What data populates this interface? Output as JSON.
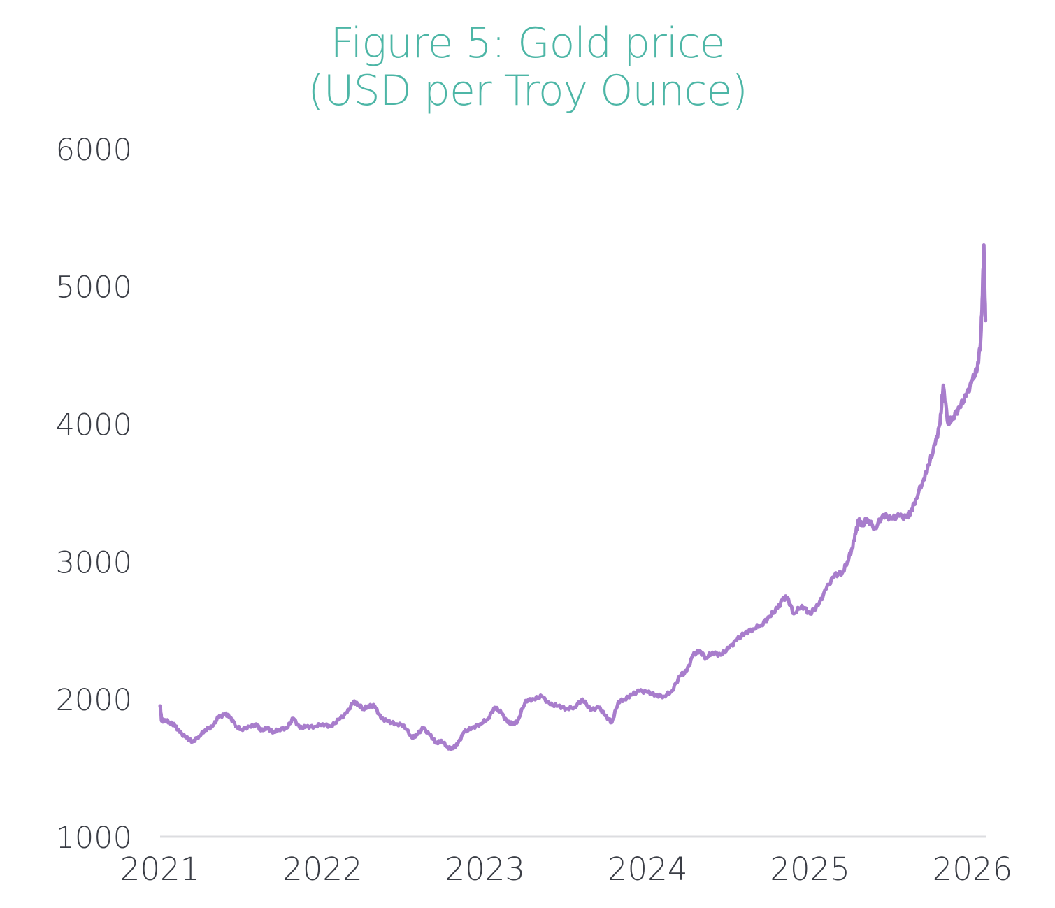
{
  "chart_data": {
    "type": "line",
    "title": "Figure 5: Gold price",
    "subtitle": "(USD per Troy Ounce)",
    "xlabel": "",
    "ylabel": "",
    "ylim": [
      1000,
      6000
    ],
    "xlim": [
      2021,
      2026.08
    ],
    "yticks": [
      "1000",
      "2000",
      "3000",
      "4000",
      "5000",
      "6000"
    ],
    "xticks": [
      "2021",
      "2022",
      "2023",
      "2024",
      "2025",
      "2026"
    ],
    "grid": false,
    "legend": "none",
    "line_color": "#a87dcc",
    "axis_color": "#dcdde0",
    "title_color": "#4db6a6",
    "series": [
      {
        "name": "Gold price",
        "x": [
          2021.0,
          2021.01,
          2021.03,
          2021.06,
          2021.09,
          2021.12,
          2021.16,
          2021.2,
          2021.24,
          2021.28,
          2021.32,
          2021.36,
          2021.4,
          2021.43,
          2021.47,
          2021.5,
          2021.55,
          2021.6,
          2021.62,
          2021.66,
          2021.7,
          2021.73,
          2021.78,
          2021.82,
          2021.86,
          2021.9,
          2021.95,
          2022.0,
          2022.05,
          2022.1,
          2022.15,
          2022.19,
          2022.22,
          2022.25,
          2022.28,
          2022.32,
          2022.36,
          2022.4,
          2022.45,
          2022.5,
          2022.55,
          2022.58,
          2022.62,
          2022.66,
          2022.7,
          2022.73,
          2022.77,
          2022.8,
          2022.83,
          2022.87,
          2022.92,
          2022.97,
          2023.02,
          2023.06,
          2023.1,
          2023.14,
          2023.17,
          2023.2,
          2023.25,
          2023.3,
          2023.35,
          2023.4,
          2023.45,
          2023.5,
          2023.55,
          2023.6,
          2023.65,
          2023.7,
          2023.74,
          2023.78,
          2023.82,
          2023.86,
          2023.9,
          2023.95,
          2024.0,
          2024.05,
          2024.1,
          2024.15,
          2024.2,
          2024.24,
          2024.28,
          2024.32,
          2024.36,
          2024.4,
          2024.45,
          2024.5,
          2024.55,
          2024.6,
          2024.65,
          2024.7,
          2024.75,
          2024.8,
          2024.83,
          2024.86,
          2024.9,
          2024.95,
          2025.0,
          2025.05,
          2025.1,
          2025.15,
          2025.2,
          2025.23,
          2025.26,
          2025.28,
          2025.3,
          2025.32,
          2025.35,
          2025.4,
          2025.45,
          2025.5,
          2025.55,
          2025.6,
          2025.62,
          2025.65,
          2025.7,
          2025.73,
          2025.77,
          2025.8,
          2025.82,
          2025.85,
          2025.88,
          2025.92,
          2025.96,
          2026.0,
          2026.03,
          2026.05,
          2026.06,
          2026.07,
          2026.08
        ],
        "values": [
          1950,
          1840,
          1850,
          1830,
          1810,
          1760,
          1720,
          1690,
          1730,
          1780,
          1800,
          1870,
          1890,
          1870,
          1800,
          1780,
          1800,
          1810,
          1770,
          1790,
          1760,
          1780,
          1790,
          1860,
          1790,
          1800,
          1800,
          1820,
          1800,
          1850,
          1900,
          1980,
          1960,
          1930,
          1950,
          1950,
          1860,
          1840,
          1820,
          1810,
          1720,
          1740,
          1790,
          1740,
          1680,
          1700,
          1650,
          1640,
          1670,
          1760,
          1790,
          1820,
          1860,
          1940,
          1900,
          1830,
          1820,
          1840,
          1990,
          2000,
          2020,
          1960,
          1950,
          1930,
          1940,
          2000,
          1920,
          1940,
          1880,
          1830,
          1980,
          2000,
          2030,
          2060,
          2050,
          2030,
          2020,
          2060,
          2170,
          2200,
          2320,
          2350,
          2300,
          2340,
          2320,
          2370,
          2430,
          2480,
          2510,
          2540,
          2600,
          2660,
          2720,
          2740,
          2620,
          2680,
          2620,
          2680,
          2800,
          2900,
          2920,
          3000,
          3100,
          3200,
          3300,
          3260,
          3310,
          3240,
          3340,
          3310,
          3330,
          3320,
          3360,
          3450,
          3600,
          3700,
          3850,
          4000,
          4280,
          4000,
          4050,
          4120,
          4200,
          4320,
          4400,
          4600,
          4900,
          5300,
          4750
        ]
      }
    ]
  }
}
